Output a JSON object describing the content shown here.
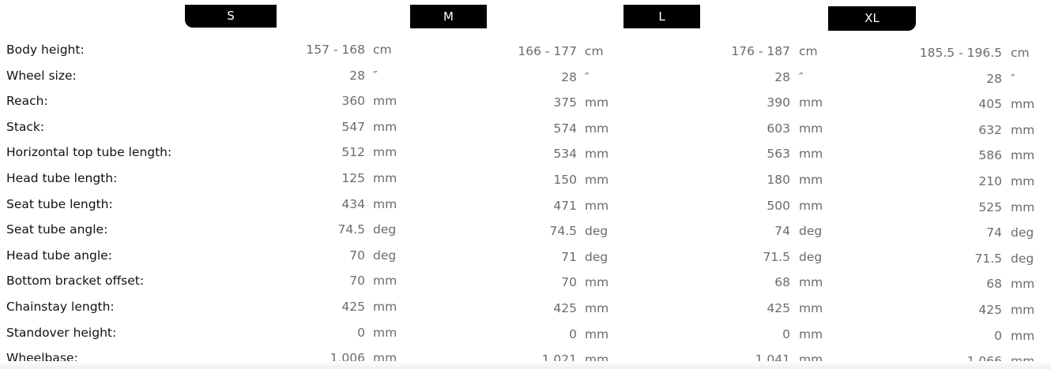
{
  "sizes": [
    "S",
    "M",
    "L",
    "XL"
  ],
  "rows": [
    {
      "label": "Body height:",
      "unit": "cm",
      "values": [
        "157 - 168",
        "166 - 177",
        "176 - 187",
        "185.5 - 196.5"
      ]
    },
    {
      "label": "Wheel size:",
      "unit": "″",
      "values": [
        "28",
        "28",
        "28",
        "28"
      ]
    },
    {
      "label": "Reach:",
      "unit": "mm",
      "values": [
        "360",
        "375",
        "390",
        "405"
      ]
    },
    {
      "label": "Stack:",
      "unit": "mm",
      "values": [
        "547",
        "574",
        "603",
        "632"
      ]
    },
    {
      "label": "Horizontal top tube length:",
      "unit": "mm",
      "values": [
        "512",
        "534",
        "563",
        "586"
      ]
    },
    {
      "label": "Head tube length:",
      "unit": "mm",
      "values": [
        "125",
        "150",
        "180",
        "210"
      ]
    },
    {
      "label": "Seat tube length:",
      "unit": "mm",
      "values": [
        "434",
        "471",
        "500",
        "525"
      ]
    },
    {
      "label": "Seat tube angle:",
      "unit": "deg",
      "values": [
        "74.5",
        "74.5",
        "74",
        "74"
      ]
    },
    {
      "label": "Head tube angle:",
      "unit": "deg",
      "values": [
        "70",
        "71",
        "71.5",
        "71.5"
      ]
    },
    {
      "label": "Bottom bracket offset:",
      "unit": "mm",
      "values": [
        "70",
        "70",
        "68",
        "68"
      ]
    },
    {
      "label": "Chainstay length:",
      "unit": "mm",
      "values": [
        "425",
        "425",
        "425",
        "425"
      ]
    },
    {
      "label": "Standover height:",
      "unit": "mm",
      "values": [
        "0",
        "0",
        "0",
        "0"
      ]
    },
    {
      "label": "Wheelbase:",
      "unit": "mm",
      "values": [
        "1,006",
        "1,021",
        "1,041",
        "1,066"
      ]
    }
  ]
}
